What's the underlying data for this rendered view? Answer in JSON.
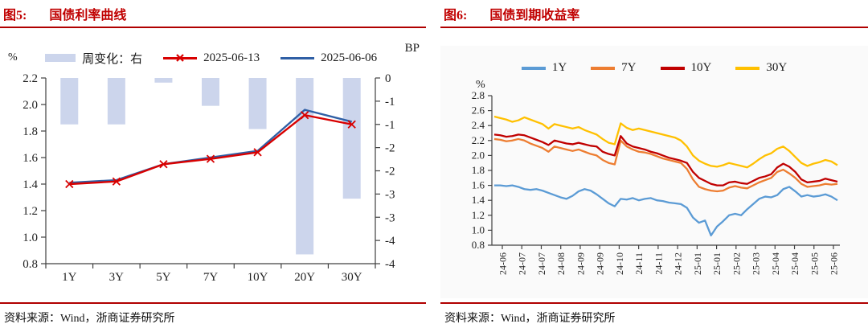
{
  "figure5": {
    "label": "图5:",
    "title": "国债利率曲线",
    "unit_left": "%",
    "unit_right": "BP",
    "source": "资料来源：Wind，浙商证券研究所",
    "accent_color": "#c00000",
    "chart_data": {
      "type": "bar+line",
      "title": "国债利率曲线",
      "categories": [
        "1Y",
        "3Y",
        "5Y",
        "7Y",
        "10Y",
        "20Y",
        "30Y"
      ],
      "left_axis": {
        "unit": "%",
        "min": 0.8,
        "max": 2.2,
        "step": 0.2,
        "tick_labels": [
          "2.2",
          "2.0",
          "1.8",
          "1.6",
          "1.4",
          "1.2",
          "1.0",
          "0.8"
        ]
      },
      "right_axis": {
        "unit": "BP",
        "min": -4,
        "max": 0,
        "tick_labels": [
          "0",
          "-1",
          "-1",
          "-2",
          "-2",
          "-3",
          "-3",
          "-4",
          "-4"
        ]
      },
      "series": [
        {
          "name": "周变化：右",
          "type": "bar",
          "axis": "right",
          "color": "#ccd5ec",
          "values": [
            -1.0,
            -1.0,
            -0.1,
            -0.6,
            -1.1,
            -3.8,
            -2.6
          ]
        },
        {
          "name": "2025-06-13",
          "type": "line",
          "marker": "x",
          "color": "#d80000",
          "values": [
            1.4,
            1.42,
            1.55,
            1.59,
            1.64,
            1.92,
            1.85
          ]
        },
        {
          "name": "2025-06-06",
          "type": "line",
          "marker": "none",
          "color": "#2f5fa5",
          "values": [
            1.41,
            1.43,
            1.55,
            1.6,
            1.65,
            1.96,
            1.87
          ]
        }
      ],
      "legend_position": "top"
    }
  },
  "figure6": {
    "label": "图6:",
    "title": "国债到期收益率",
    "unit_left": "%",
    "source": "资料来源：Wind，浙商证券研究所",
    "accent_color": "#c00000",
    "chart_data": {
      "type": "line",
      "title": "国债到期收益率",
      "y_axis": {
        "unit": "%",
        "min": 0.8,
        "max": 2.8,
        "step": 0.2,
        "tick_labels": [
          "2.8",
          "2.6",
          "2.4",
          "2.2",
          "2.0",
          "1.8",
          "1.6",
          "1.4",
          "1.2",
          "1.0",
          "0.8"
        ]
      },
      "x_tick_labels": [
        "24-06",
        "24-07",
        "24-07",
        "24-08",
        "24-09",
        "24-09",
        "24-10",
        "24-11",
        "24-11",
        "24-12",
        "25-01",
        "25-01",
        "25-02",
        "25-03",
        "25-04",
        "25-04",
        "25-05",
        "25-06"
      ],
      "legend_position": "top",
      "series": [
        {
          "name": "1Y",
          "color": "#5B9BD5",
          "values": [
            1.6,
            1.6,
            1.59,
            1.6,
            1.58,
            1.55,
            1.54,
            1.55,
            1.53,
            1.5,
            1.47,
            1.44,
            1.42,
            1.46,
            1.52,
            1.55,
            1.53,
            1.48,
            1.42,
            1.36,
            1.32,
            1.42,
            1.41,
            1.43,
            1.4,
            1.42,
            1.43,
            1.4,
            1.39,
            1.37,
            1.36,
            1.35,
            1.3,
            1.17,
            1.1,
            1.13,
            0.93,
            1.05,
            1.12,
            1.2,
            1.22,
            1.2,
            1.28,
            1.35,
            1.42,
            1.45,
            1.44,
            1.47,
            1.55,
            1.58,
            1.52,
            1.45,
            1.47,
            1.45,
            1.46,
            1.48,
            1.45,
            1.4
          ]
        },
        {
          "name": "7Y",
          "color": "#ED7D31",
          "values": [
            2.22,
            2.21,
            2.19,
            2.2,
            2.22,
            2.2,
            2.16,
            2.13,
            2.1,
            2.05,
            2.12,
            2.1,
            2.08,
            2.06,
            2.08,
            2.05,
            2.02,
            2.0,
            1.94,
            1.9,
            1.88,
            2.2,
            2.12,
            2.08,
            2.05,
            2.04,
            2.02,
            1.99,
            1.96,
            1.94,
            1.92,
            1.9,
            1.82,
            1.68,
            1.58,
            1.55,
            1.53,
            1.52,
            1.53,
            1.57,
            1.59,
            1.57,
            1.56,
            1.6,
            1.64,
            1.67,
            1.7,
            1.78,
            1.81,
            1.76,
            1.7,
            1.62,
            1.58,
            1.59,
            1.6,
            1.62,
            1.61,
            1.62
          ]
        },
        {
          "name": "10Y",
          "color": "#C00000",
          "values": [
            2.28,
            2.27,
            2.25,
            2.26,
            2.28,
            2.27,
            2.24,
            2.21,
            2.18,
            2.14,
            2.2,
            2.18,
            2.16,
            2.15,
            2.17,
            2.15,
            2.13,
            2.12,
            2.05,
            2.02,
            2.0,
            2.26,
            2.16,
            2.12,
            2.1,
            2.08,
            2.05,
            2.03,
            2.0,
            1.97,
            1.95,
            1.93,
            1.9,
            1.78,
            1.7,
            1.66,
            1.62,
            1.6,
            1.6,
            1.64,
            1.65,
            1.63,
            1.62,
            1.66,
            1.7,
            1.72,
            1.75,
            1.84,
            1.89,
            1.85,
            1.78,
            1.68,
            1.64,
            1.65,
            1.66,
            1.69,
            1.67,
            1.65
          ]
        },
        {
          "name": "30Y",
          "color": "#FFC000",
          "values": [
            2.52,
            2.5,
            2.48,
            2.45,
            2.47,
            2.51,
            2.48,
            2.45,
            2.42,
            2.36,
            2.42,
            2.4,
            2.38,
            2.36,
            2.38,
            2.34,
            2.31,
            2.28,
            2.22,
            2.17,
            2.15,
            2.43,
            2.37,
            2.34,
            2.36,
            2.34,
            2.32,
            2.3,
            2.28,
            2.26,
            2.24,
            2.2,
            2.12,
            2.0,
            1.93,
            1.89,
            1.86,
            1.85,
            1.87,
            1.9,
            1.88,
            1.86,
            1.84,
            1.89,
            1.95,
            2.0,
            2.03,
            2.09,
            2.12,
            2.06,
            1.98,
            1.9,
            1.86,
            1.89,
            1.91,
            1.94,
            1.92,
            1.87
          ]
        }
      ]
    }
  }
}
